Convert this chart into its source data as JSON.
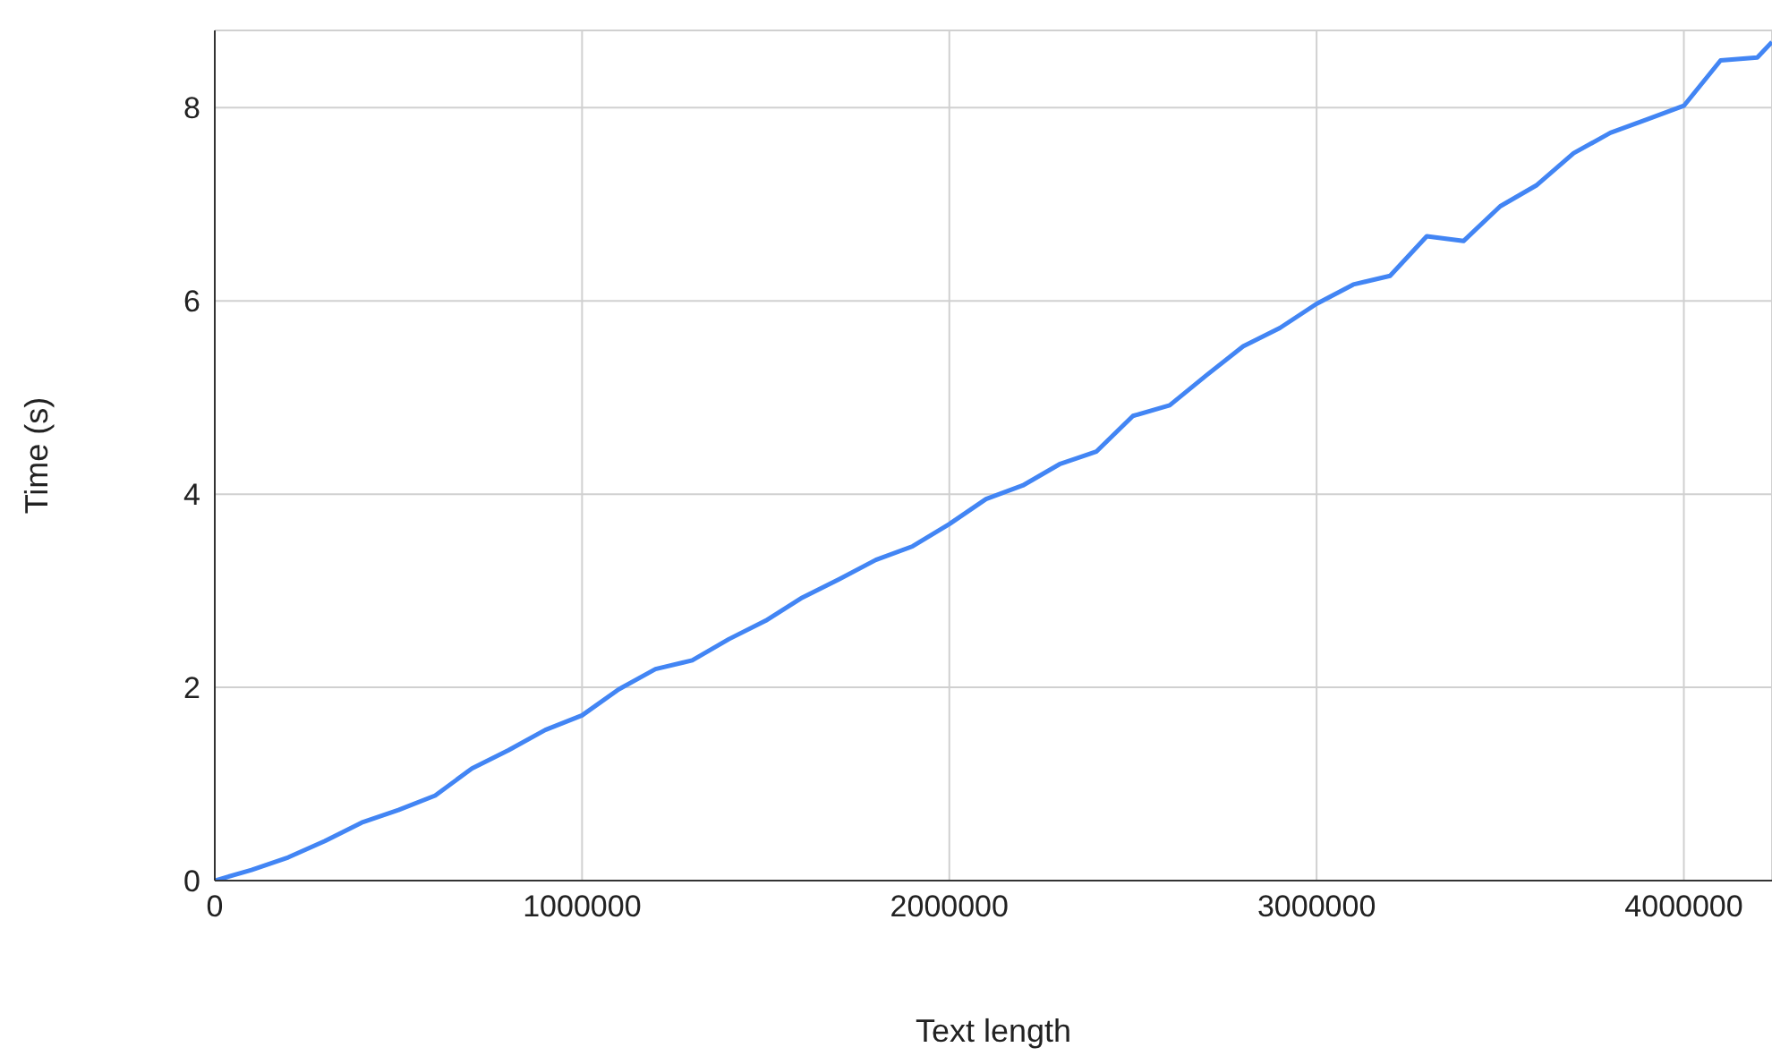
{
  "chart_data": {
    "type": "line",
    "xlabel": "Text length",
    "ylabel": "Time (s)",
    "x": [
      0,
      100000,
      200000,
      300000,
      400000,
      500000,
      600000,
      700000,
      800000,
      900000,
      1000000,
      1100000,
      1200000,
      1300000,
      1400000,
      1500000,
      1600000,
      1700000,
      1800000,
      1900000,
      2000000,
      2100000,
      2200000,
      2300000,
      2400000,
      2500000,
      2600000,
      2700000,
      2800000,
      2900000,
      3000000,
      3100000,
      3200000,
      3300000,
      3400000,
      3500000,
      3600000,
      3700000,
      3800000,
      3900000,
      4000000,
      4100000,
      4200000,
      4240000
    ],
    "series": [
      {
        "color": "#4285f4",
        "values": [
          0,
          0.11,
          0.24,
          0.41,
          0.6,
          0.73,
          0.88,
          1.16,
          1.35,
          1.56,
          1.71,
          1.98,
          2.19,
          2.28,
          2.5,
          2.69,
          2.93,
          3.12,
          3.32,
          3.46,
          3.69,
          3.95,
          4.09,
          4.31,
          4.44,
          4.81,
          4.92,
          5.23,
          5.53,
          5.72,
          5.97,
          6.17,
          6.26,
          6.67,
          6.62,
          6.98,
          7.2,
          7.53,
          7.74,
          7.88,
          8.02,
          8.49,
          8.52,
          8.68
        ]
      }
    ],
    "xlim": [
      0,
      4240000
    ],
    "ylim": [
      0,
      8.8
    ],
    "xticks": [
      0,
      1000000,
      2000000,
      3000000,
      4000000
    ],
    "yticks": [
      0,
      2,
      4,
      6,
      8
    ],
    "grid": true,
    "legend": false,
    "marker": "none",
    "line_style": "solid"
  }
}
